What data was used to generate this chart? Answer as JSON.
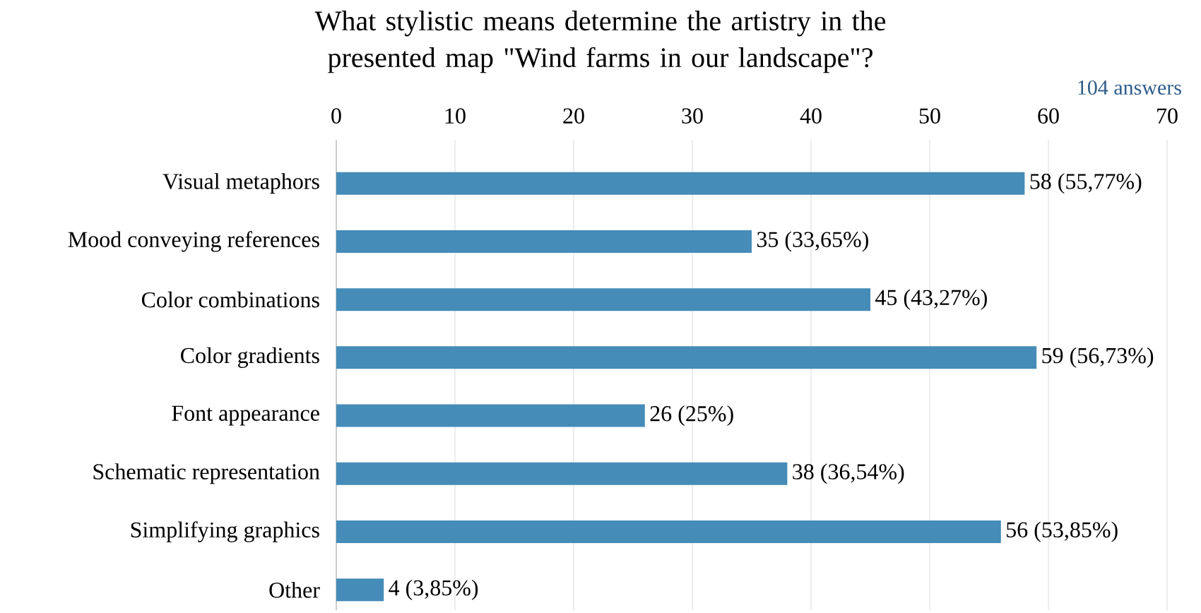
{
  "chart_data": {
    "type": "bar",
    "orientation": "horizontal",
    "title": "What stylistic means determine the artistry in the presented map \"Wind farms in our landscape\"?",
    "annotations": [
      "104 answers"
    ],
    "categories": [
      "Visual metaphors",
      "Mood conveying references",
      "Color combinations",
      "Color gradients",
      "Font appearance",
      "Schematic representation",
      "Simplifying graphics",
      "Other"
    ],
    "values": [
      58,
      35,
      45,
      59,
      26,
      38,
      56,
      4
    ],
    "value_labels": [
      "58 (55,77%)",
      "35 (33,65%)",
      "45 (43,27%)",
      "59 (56,73%)",
      "26 (25%)",
      "38 (36,54%)",
      "56 (53,85%)",
      "4 (3,85%)"
    ],
    "color": "#458cb8",
    "xlim": [
      0,
      70
    ],
    "xticks": [
      0,
      10,
      20,
      30,
      40,
      50,
      60,
      70
    ],
    "grid": "x"
  }
}
